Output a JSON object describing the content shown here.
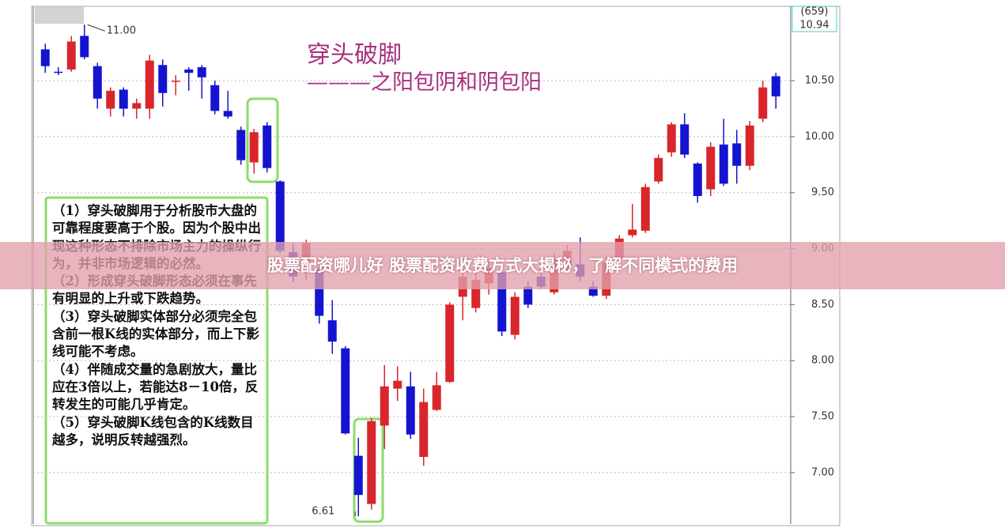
{
  "chart_data": {
    "type": "candlestick",
    "title": "穿头破脚",
    "subtitle": "———之阳包阴和阴包阳",
    "up_color": "#d8262c",
    "down_color": "#1414d0",
    "open": [
      10.78,
      10.58,
      10.6,
      10.9,
      10.63,
      10.25,
      10.42,
      10.25,
      10.25,
      10.64,
      10.49,
      10.6,
      10.62,
      10.46,
      10.23,
      10.06,
      9.77,
      10.1,
      9.6,
      8.97,
      8.8,
      8.82,
      8.36,
      8.11,
      7.15,
      6.72,
      7.42,
      7.75,
      7.77,
      7.14,
      7.56,
      7.81,
      8.57,
      8.47,
      8.69,
      8.79,
      8.23,
      8.66,
      8.75,
      8.61,
      8.82,
      8.86,
      8.66,
      8.58,
      8.91,
      9.12,
      9.16,
      9.6,
      9.86,
      10.11,
      9.76,
      9.53,
      9.93,
      9.94,
      9.74,
      10.16,
      10.54
    ],
    "high": [
      10.83,
      10.62,
      10.9,
      11.0,
      10.66,
      10.44,
      10.44,
      10.34,
      10.73,
      10.69,
      10.55,
      10.62,
      10.64,
      10.5,
      10.41,
      10.09,
      10.07,
      10.13,
      9.61,
      9.05,
      9.08,
      8.86,
      8.54,
      8.13,
      7.31,
      7.49,
      7.96,
      7.95,
      7.9,
      7.75,
      7.9,
      8.52,
      8.82,
      8.82,
      8.89,
      8.82,
      8.61,
      8.71,
      8.82,
      8.96,
      9.03,
      9.1,
      8.71,
      8.93,
      9.12,
      9.4,
      9.58,
      9.84,
      10.13,
      10.21,
      9.77,
      9.95,
      10.16,
      10.06,
      10.14,
      10.5,
      10.57
    ],
    "low": [
      10.57,
      10.55,
      10.58,
      10.69,
      10.25,
      10.18,
      10.18,
      10.16,
      10.16,
      10.27,
      10.37,
      10.41,
      10.34,
      10.2,
      10.16,
      9.75,
      9.67,
      9.68,
      8.96,
      8.7,
      8.72,
      8.33,
      8.06,
      7.34,
      6.61,
      6.67,
      7.21,
      7.64,
      7.3,
      7.06,
      7.55,
      7.8,
      8.36,
      8.43,
      8.59,
      8.22,
      8.19,
      8.47,
      8.64,
      8.59,
      8.79,
      8.71,
      8.57,
      8.55,
      8.88,
      9.1,
      9.14,
      9.58,
      9.82,
      9.81,
      9.41,
      9.47,
      9.56,
      9.58,
      9.7,
      10.13,
      10.25
    ],
    "close": [
      10.63,
      10.57,
      10.85,
      10.71,
      10.34,
      10.41,
      10.25,
      10.3,
      10.68,
      10.39,
      10.5,
      10.57,
      10.53,
      10.23,
      10.18,
      9.79,
      10.04,
      9.72,
      8.98,
      8.75,
      9.05,
      8.4,
      8.17,
      7.35,
      6.8,
      7.46,
      7.77,
      7.82,
      7.34,
      7.63,
      7.78,
      8.5,
      8.75,
      8.72,
      8.83,
      8.26,
      8.57,
      8.5,
      8.66,
      8.91,
      8.98,
      8.75,
      8.58,
      8.88,
      9.09,
      9.17,
      9.55,
      9.81,
      10.11,
      9.84,
      9.47,
      9.91,
      9.58,
      9.74,
      10.1,
      10.44,
      10.36
    ],
    "ylim": [
      6.54,
      11.15
    ],
    "yticks": [
      {
        "value": 7,
        "label": "7.00"
      },
      {
        "value": 7.5,
        "label": "7.50"
      },
      {
        "value": 8,
        "label": "8.00"
      },
      {
        "value": 8.5,
        "label": "8.50"
      },
      {
        "value": 9,
        "label": "9.00"
      },
      {
        "value": 9.5,
        "label": "9.50"
      },
      {
        "value": 10,
        "label": "10.00"
      },
      {
        "value": 10.5,
        "label": "10.50"
      }
    ],
    "grid": true,
    "annotations": [
      {
        "value": 11,
        "label": "11.00"
      },
      {
        "value": 6.61,
        "label": "6.61"
      }
    ],
    "price_box": {
      "code": "(659)",
      "price": 10.94
    },
    "notes": [
      "（1）穿头破脚用于分析股市大盘的可靠程度要高于个股。因为个股中出现这种形态不排除市场主力的操纵行为，并非市场逻辑的必然。",
      "（2）形成穿头破脚形态必须在事先有明显的上升或下跌趋势。",
      "（3）穿头破脚实体部分必须完全包含前一根K线的实体部分，而上下影线可能不考虑。",
      "（4）伴随成交量的急剧放大，量比应在3倍以上，若能达8－10倍，反转发生的可能几乎肯定。",
      "（5）穿头破脚K线包含的K线数目越多，说明反转越强烈。"
    ]
  },
  "banner": "股票配资哪儿好 股票配资收费方式大揭秘，了解不同模式的费用"
}
